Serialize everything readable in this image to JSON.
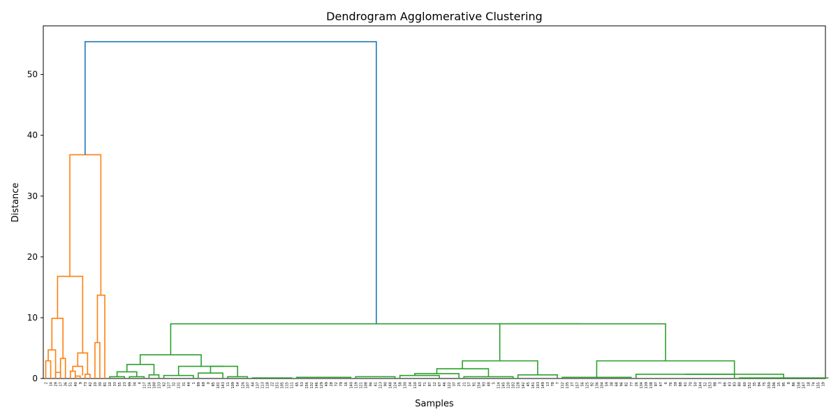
{
  "chart_data": {
    "type": "dendrogram",
    "title": "Dendrogram Agglomerative Clustering",
    "xlabel": "Samples",
    "ylabel": "Distance",
    "ylim": [
      0,
      58
    ],
    "yticks": [
      0,
      10,
      20,
      30,
      40,
      50
    ],
    "grid": false,
    "colors": {
      "root": "#1f77b4",
      "cluster_1": "#ff7f0e",
      "cluster_2": "#2ca02c"
    },
    "leaf_order": [
      2,
      14,
      29,
      17,
      36,
      51,
      40,
      9,
      73,
      42,
      20,
      30,
      81,
      10,
      33,
      55,
      23,
      99,
      34,
      4,
      117,
      116,
      100,
      133,
      62,
      127,
      32,
      131,
      31,
      44,
      1,
      89,
      69,
      0,
      85,
      101,
      143,
      11,
      109,
      54,
      126,
      107,
      64,
      137,
      113,
      118,
      22,
      151,
      105,
      115,
      111,
      65,
      53,
      156,
      132,
      146,
      129,
      49,
      28,
      72,
      79,
      16,
      140,
      119,
      121,
      108,
      94,
      41,
      123,
      90,
      148,
      124,
      58,
      130,
      24,
      110,
      63,
      71,
      87,
      12,
      67,
      46,
      122,
      37,
      25,
      21,
      57,
      91,
      154,
      93,
      48,
      5,
      114,
      145,
      120,
      102,
      128,
      142,
      45,
      141,
      103,
      149,
      13,
      78,
      7,
      112,
      135,
      27,
      157,
      56,
      125,
      92,
      136,
      104,
      59,
      38,
      68,
      96,
      82,
      77,
      26,
      134,
      139,
      138,
      97,
      47,
      6,
      76,
      39,
      88,
      61,
      70,
      50,
      144,
      52,
      153,
      98,
      3,
      66,
      43,
      83,
      80,
      60,
      152,
      35,
      84,
      75,
      150,
      106,
      15,
      95,
      8,
      86,
      158,
      147,
      18,
      74,
      155,
      19
    ],
    "merges": [
      {
        "a": 0,
        "b": 1,
        "distance": 0.0
      },
      {
        "a": 2,
        "b": 3,
        "distance": 0.0
      },
      {
        "a": 4,
        "b": 5,
        "distance": 1.0
      },
      {
        "a": 6,
        "b": 7,
        "distance": 0.0
      },
      {
        "a": 8,
        "b": 9,
        "distance": 0.0
      },
      {
        "a": 10,
        "b": 11,
        "distance": 0.0
      },
      {
        "a": 12,
        "b": 13,
        "distance": 0.0
      },
      {
        "a": 14,
        "b": 15,
        "distance": 0.0
      },
      {
        "a": 16,
        "b": 17,
        "distance": 0.0
      },
      {
        "a": 18,
        "b": 19,
        "distance": 0.0
      },
      {
        "a": 20,
        "b": 21,
        "distance": 0.0
      },
      {
        "a": 22,
        "b": 23,
        "distance": 0.0
      },
      {
        "a": 24,
        "b": 25,
        "distance": 0.0
      },
      {
        "a": 26,
        "b": 27,
        "distance": 0.0
      },
      {
        "a": 28,
        "b": 29,
        "distance": 0.0
      },
      {
        "a": 30,
        "b": 31,
        "distance": 0.0
      },
      {
        "a": 32,
        "b": 33,
        "distance": 0.0
      },
      {
        "a": 34,
        "b": 35,
        "distance": 0.0
      },
      {
        "a": 36,
        "b": 37,
        "distance": 0.0
      },
      {
        "a": 38,
        "b": 39,
        "distance": 0.0
      },
      {
        "a": 40,
        "b": 41,
        "distance": 0.0
      },
      {
        "a": 42,
        "b": 43,
        "distance": 0.0
      },
      {
        "a": 44,
        "b": 45,
        "distance": 0.0
      },
      {
        "a": 46,
        "b": 47,
        "distance": 0.0
      },
      {
        "a": 48,
        "b": 49,
        "distance": 0.0
      },
      {
        "a": 50,
        "b": 51,
        "distance": 0.0
      },
      {
        "a": 52,
        "b": 53,
        "distance": 0.0
      },
      {
        "a": 54,
        "b": 55,
        "distance": 0.0
      },
      {
        "a": 56,
        "b": 57,
        "distance": 0.0
      },
      {
        "a": 58,
        "b": 59,
        "distance": 0.0
      },
      {
        "a": 60,
        "b": 61,
        "distance": 0.0
      },
      {
        "a": 62,
        "b": 63,
        "distance": 0.0
      },
      {
        "a": 64,
        "b": 65,
        "distance": 0.0
      },
      {
        "a": 66,
        "b": 67,
        "distance": 0.0
      },
      {
        "a": 68,
        "b": 69,
        "distance": 0.0
      },
      {
        "a": 70,
        "b": 71,
        "distance": 0.0
      },
      {
        "a": 72,
        "b": 73,
        "distance": 0.0
      },
      {
        "a": 74,
        "b": 75,
        "distance": 0.0
      },
      {
        "a": 76,
        "b": 77,
        "distance": 0.0
      },
      {
        "a": 78,
        "b": 79,
        "distance": 0.0
      },
      {
        "a": 80,
        "b": 81,
        "distance": 0.0
      },
      {
        "a": 82,
        "b": 83,
        "distance": 0.0
      },
      {
        "a": 84,
        "b": 85,
        "distance": 0.0
      },
      {
        "a": 86,
        "b": 87,
        "distance": 0.0
      },
      {
        "a": 88,
        "b": 89,
        "distance": 0.0
      },
      {
        "a": 90,
        "b": 91,
        "distance": 0.0
      },
      {
        "a": 92,
        "b": 93,
        "distance": 0.0
      },
      {
        "a": 94,
        "b": 95,
        "distance": 0.0
      },
      {
        "a": 96,
        "b": 97,
        "distance": 0.0
      },
      {
        "a": 98,
        "b": 99,
        "distance": 0.0
      },
      {
        "a": 100,
        "b": 101,
        "distance": 0.0
      },
      {
        "a": 102,
        "b": 103,
        "distance": 0.0
      },
      {
        "a": 104,
        "b": 105,
        "distance": 0.0
      },
      {
        "a": 106,
        "b": 107,
        "distance": 0.0
      },
      {
        "a": 108,
        "b": 109,
        "distance": 0.0
      },
      {
        "a": 110,
        "b": 111,
        "distance": 0.0
      },
      {
        "a": 112,
        "b": 113,
        "distance": 0.0
      },
      {
        "a": 114,
        "b": 115,
        "distance": 0.0
      },
      {
        "a": 116,
        "b": 117,
        "distance": 0.0
      },
      {
        "a": 118,
        "b": 119,
        "distance": 0.0
      },
      {
        "a": 120,
        "b": 121,
        "distance": 0.0
      },
      {
        "a": 122,
        "b": 123,
        "distance": 0.0
      },
      {
        "a": 124,
        "b": 125,
        "distance": 0.0
      },
      {
        "a": 126,
        "b": 127,
        "distance": 0.0
      },
      {
        "a": 128,
        "b": 129,
        "distance": 0.0
      },
      {
        "a": 130,
        "b": 131,
        "distance": 0.0
      },
      {
        "a": 132,
        "b": 133,
        "distance": 0.0
      },
      {
        "a": 134,
        "b": 135,
        "distance": 0.0
      },
      {
        "a": 136,
        "b": 137,
        "distance": 0.0
      },
      {
        "a": 138,
        "b": 139,
        "distance": 0.0
      },
      {
        "a": 140,
        "b": 141,
        "distance": 0.0
      },
      {
        "a": 142,
        "b": 143,
        "distance": 0.0
      },
      {
        "a": 144,
        "b": 145,
        "distance": 0.0
      },
      {
        "a": 146,
        "b": 147,
        "distance": 0.0
      },
      {
        "a": 148,
        "b": 149,
        "distance": 0.0
      },
      {
        "a": 150,
        "b": 151,
        "distance": 0.0
      },
      {
        "a": 152,
        "b": 153,
        "distance": 0.0
      },
      {
        "a": 154,
        "b": 155,
        "distance": 0.0
      },
      {
        "a": 156,
        "b": 157,
        "distance": 0.0
      },
      {
        "a": 158,
        "b": 159,
        "distance": 0.0
      }
    ],
    "root_distance": 55.4
  }
}
